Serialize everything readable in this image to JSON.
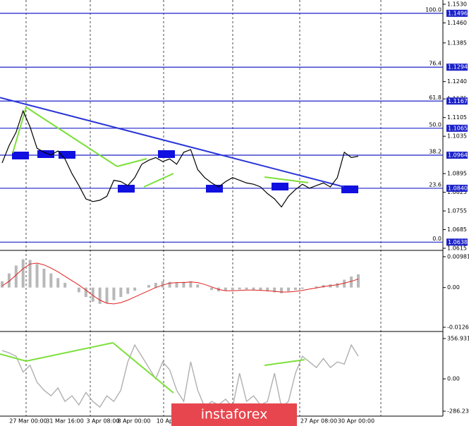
{
  "chart_data": {
    "type": "line",
    "price": {
      "values": [
        1.0935,
        1.1,
        1.105,
        1.113,
        1.107,
        1.099,
        1.0975,
        1.0965,
        1.098,
        1.095,
        1.0895,
        1.085,
        1.08,
        1.079,
        1.0795,
        1.081,
        1.087,
        1.0865,
        1.085,
        1.088,
        1.093,
        1.0945,
        1.0955,
        1.094,
        1.095,
        1.093,
        1.0975,
        1.0985,
        1.091,
        1.088,
        1.086,
        1.0845,
        1.0865,
        1.088,
        1.087,
        1.086,
        1.0855,
        1.0845,
        1.082,
        1.08,
        1.077,
        1.081,
        1.0835,
        1.0855,
        1.084,
        1.085,
        1.086,
        1.0845,
        1.088,
        1.0975,
        1.0955,
        1.096
      ],
      "color": "#000000",
      "ylim": [
        1.0615,
        1.153
      ],
      "yticks": [
        {
          "value": 1.153,
          "label": "1.1530"
        },
        {
          "value": 1.146,
          "label": "1.1460"
        },
        {
          "value": 1.1385,
          "label": "1.1385"
        },
        {
          "value": 1.124,
          "label": "1.1240"
        },
        {
          "value": 1.1175,
          "label": "1.1175"
        },
        {
          "value": 1.1105,
          "label": "1.1105"
        },
        {
          "value": 1.1035,
          "label": "1.1035"
        },
        {
          "value": 1.0895,
          "label": "1.0895"
        },
        {
          "value": 1.0825,
          "label": "1.0825"
        },
        {
          "value": 1.0755,
          "label": "1.0755"
        },
        {
          "value": 1.0685,
          "label": "1.0685"
        },
        {
          "value": 1.0615,
          "label": "1.0615"
        }
      ],
      "trendline": [
        1.118,
        1.0845
      ],
      "trendline_color": "#2a35d8"
    },
    "fibonacci": {
      "color": "#1c22c8",
      "levels": [
        {
          "value": 100,
          "label": "100.0"
        },
        76.4,
        61.8,
        {
          "value": 50,
          "label": "50.0"
        },
        38.2,
        23.6,
        {
          "value": 0,
          "label": "0.0"
        }
      ],
      "prices": [
        1.1496,
        1.1294,
        1.1167,
        1.1065,
        1.0964,
        {
          "value": 1.084,
          "label": "1.0840"
        },
        1.0638
      ]
    },
    "macd": {
      "histogram": [
        0.002,
        0.0045,
        0.007,
        0.009,
        0.0088,
        0.0075,
        0.006,
        0.0045,
        0.003,
        0.0015,
        0.0,
        -0.0015,
        -0.003,
        -0.0045,
        -0.0052,
        -0.005,
        -0.004,
        -0.003,
        -0.002,
        -0.001,
        0.0,
        0.0008,
        0.0015,
        0.002,
        0.0018,
        0.0015,
        0.0018,
        0.002,
        0.001,
        0.0,
        -0.0008,
        -0.0012,
        -0.001,
        -0.0008,
        -0.0006,
        -0.0006,
        -0.0008,
        -0.001,
        -0.0012,
        -0.0015,
        -0.0018,
        -0.0012,
        -0.0008,
        -0.0004,
        0.0,
        0.0004,
        0.0008,
        0.001,
        0.0014,
        0.0025,
        0.0035,
        0.0042
      ],
      "signal": [
        0.0005,
        0.002,
        0.004,
        0.006,
        0.0075,
        0.0078,
        0.0072,
        0.0062,
        0.005,
        0.0036,
        0.0022,
        0.0008,
        -0.0008,
        -0.0025,
        -0.004,
        -0.005,
        -0.0052,
        -0.0048,
        -0.004,
        -0.003,
        -0.002,
        -0.001,
        0.0,
        0.0008,
        0.0014,
        0.0016,
        0.0016,
        0.0018,
        0.0016,
        0.001,
        0.0002,
        -0.0006,
        -0.001,
        -0.001,
        -0.0009,
        -0.0008,
        -0.0008,
        -0.0009,
        -0.001,
        -0.0012,
        -0.0014,
        -0.0014,
        -0.0012,
        -0.0009,
        -0.0005,
        -0.0001,
        0.0003,
        0.0006,
        0.0009,
        0.0014,
        0.002,
        0.0027
      ],
      "histogram_color": "#b8b8b8",
      "signal_color": "#e02020",
      "ylim": [
        -0.01263,
        0.00981
      ],
      "yticks": [
        0.00981,
        {
          "value": 0,
          "label": "0.00"
        },
        -0.01263
      ]
    },
    "cci": {
      "values": [
        250,
        230,
        200,
        60,
        120,
        -30,
        -100,
        -150,
        -80,
        -200,
        -150,
        -230,
        -120,
        -200,
        -250,
        -150,
        -200,
        -100,
        150,
        300,
        200,
        100,
        0,
        150,
        80,
        -100,
        -200,
        150,
        -100,
        -250,
        -200,
        -230,
        -180,
        -250,
        50,
        -200,
        -150,
        -230,
        -200,
        50,
        -250,
        -200,
        50,
        200,
        150,
        100,
        180,
        100,
        150,
        130,
        300,
        200
      ],
      "color": "#b0b0b0",
      "ylim": [
        -286.2356,
        356.9314
      ],
      "yticks": [
        356.9314,
        {
          "value": 0,
          "label": "0.00"
        },
        -286.2356
      ]
    },
    "x_labels": [
      "27 Mar 00:00",
      "31 Mar 16:00",
      "3 Apr 08:00",
      "8 Apr 00:00",
      "10 Apr",
      "27 Apr 08:00",
      "30 Apr 00:00"
    ],
    "watermark": "instaforex"
  }
}
